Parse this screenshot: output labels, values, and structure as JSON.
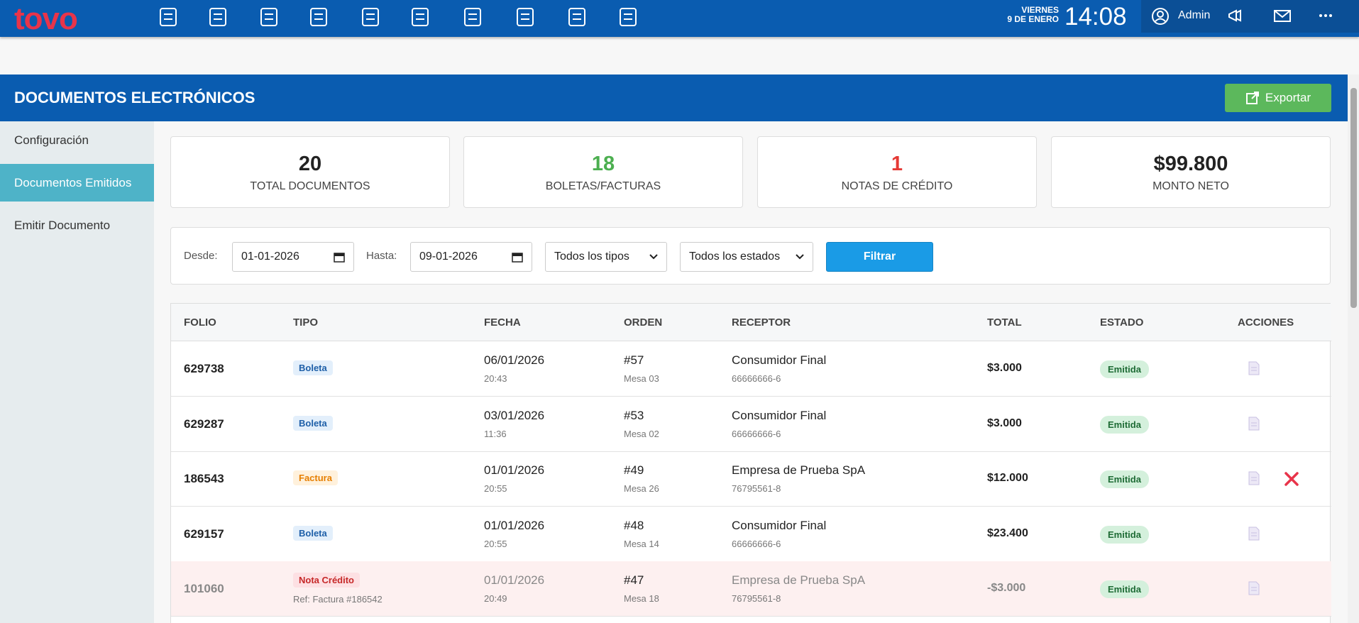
{
  "header": {
    "brand": "tovo",
    "day": "VIERNES",
    "date": "9 DE ENERO",
    "time": "14:08",
    "user": "Admin"
  },
  "page": {
    "title": "DOCUMENTOS ELECTRÓNICOS",
    "export": "Exportar"
  },
  "sidebar": {
    "items": [
      "Configuración",
      "Documentos Emitidos",
      "Emitir Documento"
    ],
    "active": 1
  },
  "stats": [
    {
      "value": "20",
      "label": "TOTAL DOCUMENTOS",
      "color": "#222222"
    },
    {
      "value": "18",
      "label": "BOLETAS/FACTURAS",
      "color": "#4caf50"
    },
    {
      "value": "1",
      "label": "NOTAS DE CRÉDITO",
      "color": "#e53935"
    },
    {
      "value": "$99.800",
      "label": "MONTO NETO",
      "color": "#222222"
    }
  ],
  "filters": {
    "desde_label": "Desde:",
    "desde": "01-01-2026",
    "hasta_label": "Hasta:",
    "hasta": "09-01-2026",
    "tipo": "Todos los tipos",
    "estado": "Todos los estados",
    "button": "Filtrar"
  },
  "table": {
    "headers": [
      "FOLIO",
      "TIPO",
      "FECHA",
      "ORDEN",
      "RECEPTOR",
      "TOTAL",
      "ESTADO",
      "ACCIONES"
    ],
    "rows": [
      {
        "folio": "629738",
        "tipo": "Boleta",
        "tipo_color": "#1e5fa8",
        "tipo_bg": "#e3effb",
        "fecha": "06/01/2026",
        "hora": "20:43",
        "orden": "#57",
        "mesa": "Mesa 03",
        "receptor": "Consumidor Final",
        "rut": "66666666-6",
        "total": "$3.000",
        "estado": "Emitida"
      },
      {
        "folio": "629287",
        "tipo": "Boleta",
        "tipo_color": "#1e5fa8",
        "tipo_bg": "#e3effb",
        "fecha": "03/01/2026",
        "hora": "11:36",
        "orden": "#53",
        "mesa": "Mesa 02",
        "receptor": "Consumidor Final",
        "rut": "66666666-6",
        "total": "$3.000",
        "estado": "Emitida"
      },
      {
        "folio": "186543",
        "tipo": "Factura",
        "tipo_color": "#e67e00",
        "tipo_bg": "#fff1dc",
        "fecha": "01/01/2026",
        "hora": "20:55",
        "orden": "#49",
        "mesa": "Mesa 26",
        "receptor": "Empresa de Prueba SpA",
        "rut": "76795561-8",
        "total": "$12.000",
        "estado": "Emitida",
        "can_cancel": true
      },
      {
        "folio": "629157",
        "tipo": "Boleta",
        "tipo_color": "#1e5fa8",
        "tipo_bg": "#e3effb",
        "fecha": "01/01/2026",
        "hora": "20:55",
        "orden": "#48",
        "mesa": "Mesa 14",
        "receptor": "Consumidor Final",
        "rut": "66666666-6",
        "total": "$23.400",
        "estado": "Emitida"
      },
      {
        "folio": "101060",
        "tipo": "Nota Crédito",
        "tipo_color": "#c62828",
        "tipo_bg": "#fde0e3",
        "ref": "Ref: Factura #186542",
        "fecha": "01/01/2026",
        "hora": "20:49",
        "orden": "#47",
        "mesa": "Mesa 18",
        "receptor": "Empresa de Prueba SpA",
        "rut": "76795561-8",
        "total": "-$3.000",
        "estado": "Emitida"
      }
    ]
  }
}
